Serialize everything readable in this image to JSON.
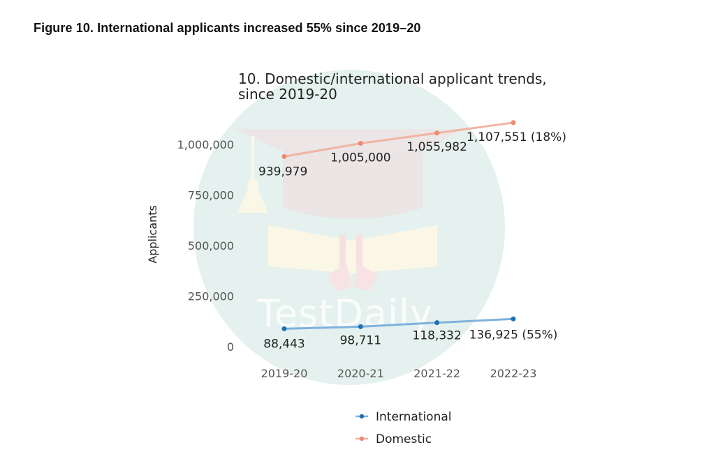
{
  "figure_caption": "Figure 10. International applicants increased 55% since 2019–20",
  "watermark": "TestDaily",
  "chart_data": {
    "type": "line",
    "title_lines": [
      "10. Domestic/international applicant trends,",
      "since 2019-20"
    ],
    "xlabel": "",
    "ylabel": "Applicants",
    "categories": [
      "2019-20",
      "2020-21",
      "2021-22",
      "2022-23"
    ],
    "ylim": [
      0,
      1150000
    ],
    "yticks": [
      0,
      250000,
      500000,
      750000,
      1000000
    ],
    "ytick_labels": [
      "0",
      "250,000",
      "500,000",
      "750,000",
      "1,000,000"
    ],
    "grid": false,
    "legend_position": "bottom",
    "series": [
      {
        "name": "International",
        "color": "#1f6fb4",
        "line_color": "#7fb2dc",
        "values": [
          88443,
          98711,
          118332,
          136925
        ],
        "labels": [
          "88,443",
          "98,711",
          "118,332",
          "136,925 (55%)"
        ]
      },
      {
        "name": "Domestic",
        "color": "#ee8b70",
        "line_color": "#f2b3a2",
        "values": [
          939979,
          1005000,
          1055982,
          1107551
        ],
        "labels": [
          "939,979",
          "1,005,000",
          "1,055,982",
          "1,107,551 (18%)"
        ]
      }
    ]
  }
}
